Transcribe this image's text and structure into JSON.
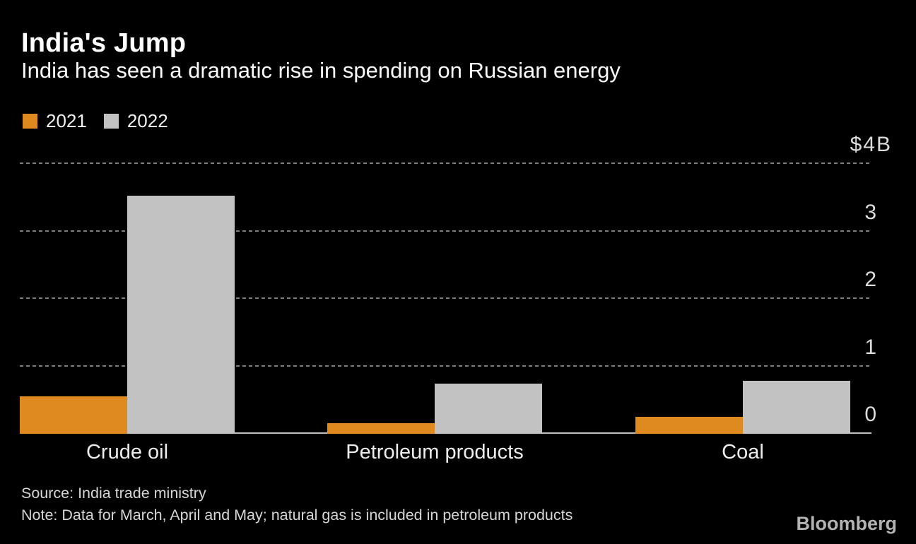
{
  "header": {
    "title": "India's Jump",
    "subtitle": "India has seen a dramatic rise in spending on Russian energy"
  },
  "legend": [
    {
      "label": "2021",
      "color": "#DE8A1E"
    },
    {
      "label": "2022",
      "color": "#C2C2C2"
    }
  ],
  "chart_data": {
    "type": "bar",
    "title": "India's Jump",
    "subtitle": "India has seen a dramatic rise in spending on Russian energy",
    "unit": "$B",
    "categories": [
      "Crude oil",
      "Petroleum products",
      "Coal"
    ],
    "series": [
      {
        "name": "2021",
        "color": "#DE8A1E",
        "values": [
          0.55,
          0.16,
          0.25
        ]
      },
      {
        "name": "2022",
        "color": "#C2C2C2",
        "values": [
          3.53,
          0.74,
          0.79
        ]
      }
    ],
    "ylim": [
      0,
      4
    ],
    "yticks": [
      {
        "value": 0,
        "label": "0"
      },
      {
        "value": 1,
        "label": "1"
      },
      {
        "value": 2,
        "label": "2"
      },
      {
        "value": 3,
        "label": "3"
      },
      {
        "value": 4,
        "label": "$4B"
      }
    ],
    "grid": "horizontal-dotted",
    "legend_position": "top-left"
  },
  "footer": {
    "source": "Source: India trade ministry",
    "note": "Note: Data for March, April and May; natural gas is included in petroleum products",
    "brand": "Bloomberg"
  },
  "colors": {
    "background": "#000000",
    "series_2021": "#DE8A1E",
    "series_2022": "#C2C2C2",
    "gridline": "#7D7D7D",
    "axis_line": "#BFBFBF",
    "title_text": "#FFFFFF",
    "tick_text": "#DCDCDC",
    "footer_text": "#D6D6D6",
    "brand_text": "#B3B3B3"
  }
}
